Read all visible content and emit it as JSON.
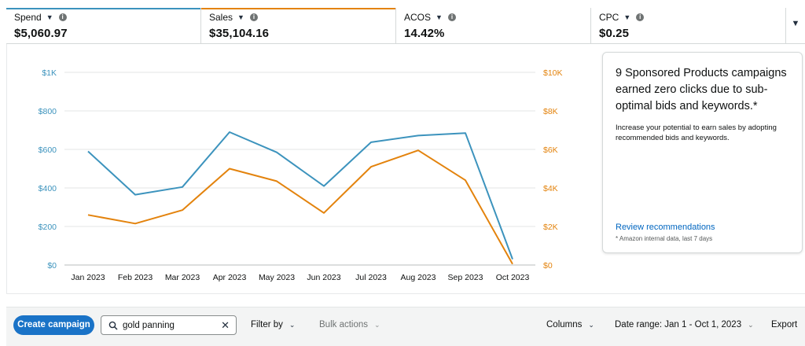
{
  "metrics": [
    {
      "label": "Spend",
      "value": "$5,060.97",
      "color": "#3c93bd"
    },
    {
      "label": "Sales",
      "value": "$35,104.16",
      "color": "#e3830d"
    },
    {
      "label": "ACOS",
      "value": "14.42%",
      "color": ""
    },
    {
      "label": "CPC",
      "value": "$0.25",
      "color": ""
    }
  ],
  "recommendation": {
    "title": "9 Sponsored Products campaigns earned zero clicks due to sub-optimal bids and keywords.*",
    "body": "Increase your potential to earn sales by adopting recommended bids and keywords.",
    "link": "Review recommendations",
    "note": "* Amazon internal data, last 7 days"
  },
  "toolbar": {
    "create_label": "Create campaign",
    "search_value": "gold panning",
    "filter_label": "Filter by",
    "bulk_label": "Bulk actions",
    "columns_label": "Columns",
    "date_range_label": "Date range: Jan 1 - Oct 1, 2023",
    "export_label": "Export"
  },
  "chart_data": {
    "type": "line",
    "categories": [
      "Jan 2023",
      "Feb 2023",
      "Mar 2023",
      "Apr 2023",
      "May 2023",
      "Jun 2023",
      "Jul 2023",
      "Aug 2023",
      "Sep 2023",
      "Oct 2023"
    ],
    "series": [
      {
        "name": "Spend",
        "axis": "left",
        "color": "#3c93bd",
        "values": [
          590,
          365,
          405,
          690,
          585,
          410,
          637,
          672,
          685,
          30
        ]
      },
      {
        "name": "Sales",
        "axis": "right",
        "color": "#e3830d",
        "values": [
          2600,
          2150,
          2850,
          5000,
          4350,
          2700,
          5100,
          5950,
          4400,
          50
        ]
      }
    ],
    "y_left": {
      "ticks": [
        "$0",
        "$200",
        "$400",
        "$600",
        "$800",
        "$1K"
      ],
      "range": [
        0,
        1000
      ],
      "color": "#3c93bd"
    },
    "y_right": {
      "ticks": [
        "$0",
        "$2K",
        "$4K",
        "$6K",
        "$8K",
        "$10K"
      ],
      "range": [
        0,
        10000
      ],
      "color": "#e3830d"
    },
    "grid": true
  }
}
